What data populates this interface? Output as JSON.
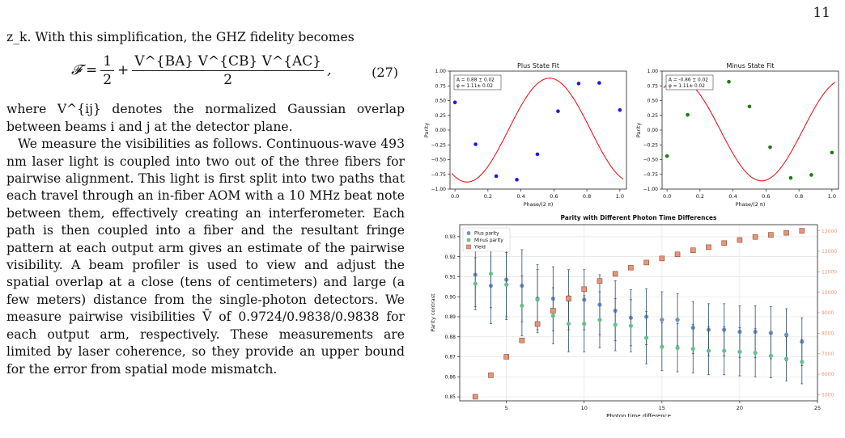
{
  "page": {
    "number": "11"
  },
  "text": {
    "p1": "z_k. With this simplification, the GHZ fidelity becomes",
    "eq_lhs": "𝓕 =",
    "eq_frac1_num": "1",
    "eq_frac1_den": "2",
    "eq_plus": "+",
    "eq_frac2_num": "V^{BA} V^{CB} V^{AC}",
    "eq_frac2_den": "2",
    "eq_comma": ",",
    "eq_number": "(27)",
    "p2": "where V^{ij} denotes the normalized Gaussian overlap between beams i and j at the detector plane.",
    "p3": "We measure the visibilities as follows. Continuous-wave 493 nm laser light is coupled into two out of the three fibers for pairwise alignment. This light is first split into two paths that each travel through an in-fiber AOM with a 10 MHz beat note between them, effectively creating an interferometer. Each path is then coupled into a fiber and the resultant fringe pattern at each output arm gives an estimate of the pairwise visibility. A beam profiler is used to view and adjust the spatial overlap at a close (tens of centimeters) and large (a few meters) distance from the single-photon detectors. We measure pairwise visibilities V̄ of 0.9724/0.9838/0.9838 for each output arm, respectively. These measurements are limited by laser coherence, so they provide an upper bound for the error from spatial mode mismatch."
  },
  "colors": {
    "fit_line": "#e8191c",
    "plus_points": "#1b1be0",
    "minus_points": "#1f7a12",
    "plus_parity": "#6f8fc7",
    "minus_parity": "#66c08b",
    "yield": "#e6957a",
    "error_bar": "#2d4d6b"
  },
  "chart_data": [
    {
      "type": "scatter",
      "title": "Plus State Fit",
      "xlabel": "Phase/(2 π)",
      "ylabel": "Parity",
      "xlim": [
        -0.03,
        1.04
      ],
      "ylim": [
        -1.0,
        1.0
      ],
      "xticks": [
        "0.0",
        "0.2",
        "0.4",
        "0.6",
        "0.8",
        "1.0"
      ],
      "yticks": [
        "1.00",
        "0.75",
        "0.50",
        "0.25",
        "0.00",
        "−0.25",
        "−0.50",
        "−0.75",
        "−1.00"
      ],
      "annotation": [
        "A = 0.88 ± 0.02",
        "φ = 1.11± 0.02"
      ],
      "fit": {
        "amplitude": 0.88,
        "phase": 1.11
      },
      "points": {
        "x": [
          0,
          0.125,
          0.25,
          0.375,
          0.5,
          0.625,
          0.75,
          0.875,
          1.0
        ],
        "y": [
          0.47,
          -0.24,
          -0.78,
          -0.84,
          -0.41,
          0.32,
          0.79,
          0.8,
          0.34
        ]
      },
      "grid": false
    },
    {
      "type": "scatter",
      "title": "Minus State Fit",
      "xlabel": "Phase/(2 π)",
      "ylabel": "Parity",
      "xlim": [
        -0.03,
        1.04
      ],
      "ylim": [
        -1.0,
        1.0
      ],
      "xticks": [
        "0.0",
        "0.2",
        "0.4",
        "0.6",
        "0.8",
        "1.0"
      ],
      "yticks": [
        "1.00",
        "0.75",
        "0.50",
        "0.25",
        "0.00",
        "−0.25",
        "−0.50",
        "−0.75",
        "−1.00"
      ],
      "annotation": [
        "A = -0.86 ± 0.02",
        "φ = 1.11± 0.02"
      ],
      "fit": {
        "amplitude": -0.86,
        "phase": 1.11
      },
      "points": {
        "x": [
          0,
          0.125,
          0.25,
          0.375,
          0.5,
          0.625,
          0.75,
          0.875,
          1.0
        ],
        "y": [
          -0.44,
          0.26,
          0.78,
          0.82,
          0.4,
          -0.29,
          -0.81,
          -0.76,
          -0.38
        ]
      },
      "grid": false
    },
    {
      "type": "scatter",
      "title": "Parity with Different Photon Time Differences",
      "xlabel": "Photon time difference",
      "ylabel": "Parity contrast",
      "y2label": "Yield",
      "xlim": [
        2,
        25
      ],
      "ylim": [
        0.848,
        0.936
      ],
      "y2lim": [
        4700,
        13300
      ],
      "xticks": [
        "5",
        "10",
        "15",
        "20",
        "25"
      ],
      "xtick_values": [
        5,
        10,
        15,
        20,
        25
      ],
      "yticks": [
        "0.93",
        "0.92",
        "0.91",
        "0.90",
        "0.89",
        "0.88",
        "0.87",
        "0.86",
        "0.85"
      ],
      "ytick_values": [
        0.93,
        0.92,
        0.91,
        0.9,
        0.89,
        0.88,
        0.87,
        0.86,
        0.85
      ],
      "y2ticks": [
        "13000",
        "12000",
        "11000",
        "10000",
        "9000",
        "8000",
        "7000",
        "6000",
        "5000"
      ],
      "y2tick_values": [
        13000,
        12000,
        11000,
        10000,
        9000,
        8000,
        7000,
        6000,
        5000
      ],
      "grid": true,
      "legend": {
        "placement": "top-left",
        "entries": [
          "Plus parity",
          "Minus parity",
          "Yield"
        ]
      },
      "x": [
        3,
        4,
        5,
        6,
        7,
        8,
        9,
        10,
        11,
        12,
        13,
        14,
        15,
        16,
        17,
        18,
        19,
        20,
        21,
        22,
        23,
        24
      ],
      "series": [
        {
          "name": "Plus parity",
          "values": [
            0.911,
            0.9055,
            0.9085,
            0.9055,
            0.899,
            0.899,
            0.8985,
            0.8985,
            0.896,
            0.893,
            0.8895,
            0.89,
            0.8885,
            0.8885,
            0.8845,
            0.8835,
            0.8835,
            0.8825,
            0.8825,
            0.882,
            0.881,
            0.8775
          ],
          "err": [
            0.016,
            0.019,
            0.02,
            0.018,
            0.017,
            0.016,
            0.015,
            0.015,
            0.015,
            0.015,
            0.014,
            0.014,
            0.014,
            0.013,
            0.013,
            0.013,
            0.013,
            0.013,
            0.013,
            0.013,
            0.013,
            0.012
          ]
        },
        {
          "name": "Minus parity",
          "values": [
            0.9065,
            0.9115,
            0.906,
            0.8955,
            0.8985,
            0.8905,
            0.8865,
            0.8865,
            0.8885,
            0.886,
            0.8855,
            0.8795,
            0.875,
            0.8745,
            0.874,
            0.873,
            0.873,
            0.8725,
            0.872,
            0.8705,
            0.869,
            0.8675
          ],
          "err": [
            0.013,
            0.017,
            0.016,
            0.015,
            0.015,
            0.014,
            0.014,
            0.014,
            0.014,
            0.013,
            0.013,
            0.013,
            0.012,
            0.012,
            0.012,
            0.012,
            0.012,
            0.012,
            0.012,
            0.011,
            0.011,
            0.011
          ]
        },
        {
          "name": "Yield",
          "axis": "right",
          "values": [
            4900,
            5950,
            6850,
            7650,
            8450,
            9100,
            9700,
            10150,
            10550,
            10900,
            11200,
            11450,
            11650,
            11850,
            12050,
            12200,
            12400,
            12550,
            12700,
            12800,
            12900,
            13000
          ]
        }
      ]
    }
  ]
}
